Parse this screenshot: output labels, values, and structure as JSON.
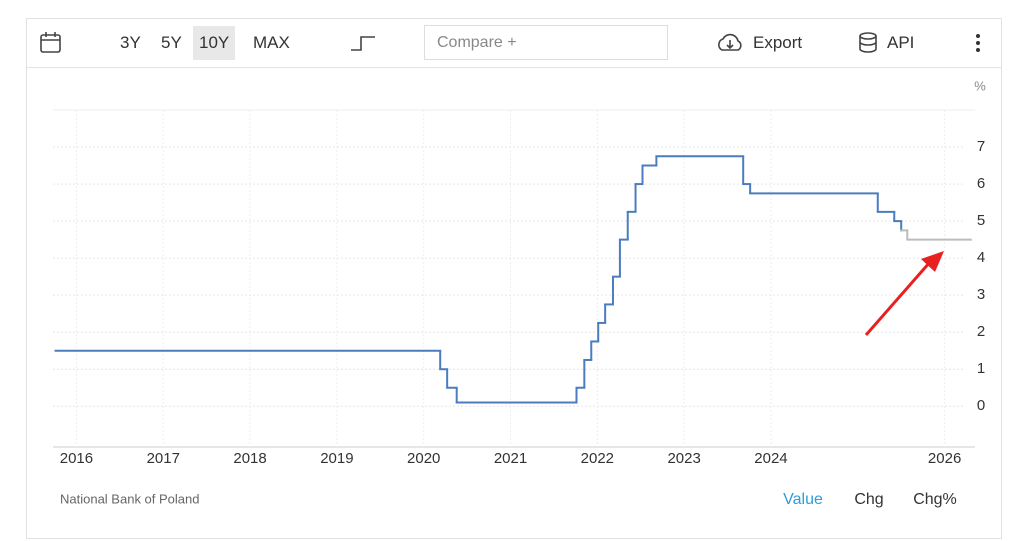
{
  "toolbar": {
    "ranges": [
      "3Y",
      "5Y",
      "10Y",
      "MAX"
    ],
    "compare": "Compare +",
    "export": "Export",
    "api": "API"
  },
  "chart_data": {
    "type": "line",
    "step": true,
    "y_label": "%",
    "series": [
      {
        "color": "#4a7cbf",
        "x": [
          2015.76,
          2020.19,
          2020.27,
          2020.38,
          2021.76,
          2021.85,
          2021.93,
          2022.01,
          2022.09,
          2022.18,
          2022.26,
          2022.35,
          2022.44,
          2022.52,
          2022.68,
          2023.68,
          2023.76,
          2025.23,
          2025.42,
          2025.5
        ],
        "values": [
          1.5,
          1.0,
          0.5,
          0.1,
          0.5,
          1.25,
          1.75,
          2.25,
          2.75,
          3.5,
          4.5,
          5.25,
          6.0,
          6.5,
          6.75,
          6.0,
          5.75,
          5.25,
          5.0,
          4.75
        ]
      },
      {
        "color": "#bcbcbc",
        "x": [
          2025.5,
          2025.57,
          2026.3
        ],
        "values": [
          4.75,
          4.5,
          4.5
        ]
      }
    ],
    "xlim": [
      2015.73,
      2026.35
    ],
    "xticks": [
      2016,
      2017,
      2018,
      2019,
      2020,
      2021,
      2022,
      2023,
      2024,
      2026
    ],
    "ylim": [
      -1.1,
      8
    ],
    "yticks": [
      0,
      1,
      2,
      3,
      4,
      5,
      6,
      7
    ],
    "grid": true
  },
  "footer": {
    "source": "National Bank of Poland",
    "tabs": [
      "Value",
      "Chg",
      "Chg%"
    ]
  }
}
